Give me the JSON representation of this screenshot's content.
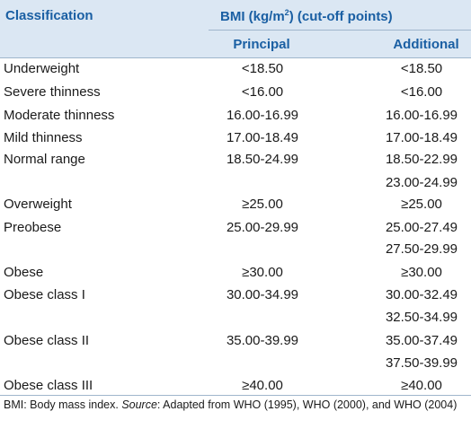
{
  "header": {
    "classification": "Classification",
    "bmi_label": "BMI (kg/m",
    "bmi_sup": "2",
    "bmi_suffix": ") (cut-off points)",
    "principal": "Principal",
    "additional": "Additional"
  },
  "rows": [
    {
      "classification": "Underweight",
      "principal": "<18.50",
      "additional": "<18.50",
      "additional_2": ""
    },
    {
      "classification": "Severe thinness",
      "principal": "<16.00",
      "additional": "<16.00",
      "additional_2": ""
    },
    {
      "classification": "Moderate thinness",
      "principal": "16.00-16.99",
      "additional": "16.00-16.99",
      "additional_2": ""
    },
    {
      "classification": "Mild thinness",
      "principal": "17.00-18.49",
      "additional": "17.00-18.49",
      "additional_2": ""
    },
    {
      "classification": "Normal range",
      "principal": "18.50-24.99",
      "additional": "18.50-22.99",
      "additional_2": "23.00-24.99"
    },
    {
      "classification": "Overweight",
      "principal": "≥25.00",
      "additional": "≥25.00",
      "additional_2": ""
    },
    {
      "classification": "Preobese",
      "principal": "25.00-29.99",
      "additional": "25.00-27.49",
      "additional_2": "27.50-29.99"
    },
    {
      "classification": "Obese",
      "principal": "≥30.00",
      "additional": "≥30.00",
      "additional_2": ""
    },
    {
      "classification": "Obese class I",
      "principal": "30.00-34.99",
      "additional": "30.00-32.49",
      "additional_2": "32.50-34.99"
    },
    {
      "classification": "Obese class II",
      "principal": "35.00-39.99",
      "additional": "35.00-37.49",
      "additional_2": "37.50-39.99"
    },
    {
      "classification": "Obese class III",
      "principal": "≥40.00",
      "additional": "≥40.00",
      "additional_2": ""
    }
  ],
  "footnote": {
    "prefix": "BMI: Body mass index. ",
    "source_label": "Source",
    "text": ": Adapted from WHO (1995), WHO (2000), and WHO (2004)"
  }
}
